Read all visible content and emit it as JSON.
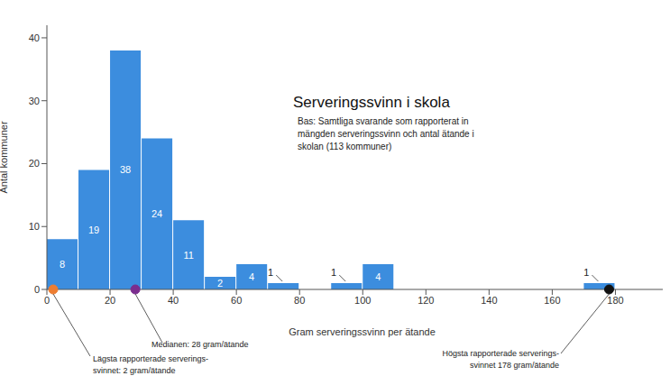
{
  "chart_data": {
    "type": "histogram",
    "title": "Serveringssvinn i skola",
    "subtitle": "Bas: Samtliga svarande som rapporterat in mängden serveringssvinn och antal ätande i skolan (113 kommuner)",
    "x_label": "Gram serveringssvinn per ätande",
    "y_label": "Antal kommuner",
    "bins": [
      0,
      10,
      20,
      30,
      40,
      50,
      60,
      70,
      80,
      90,
      100,
      110,
      120,
      130,
      140,
      150,
      160,
      170,
      180
    ],
    "values": [
      8,
      19,
      38,
      24,
      11,
      2,
      4,
      1,
      0,
      1,
      4,
      0,
      0,
      0,
      0,
      0,
      0,
      1
    ],
    "color": "#3c8dde",
    "xlim": [
      0,
      195
    ],
    "xticks": [
      0,
      20,
      40,
      60,
      80,
      100,
      120,
      140,
      160,
      180
    ],
    "ylim": [
      0,
      42
    ],
    "yticks": [
      0,
      10,
      20,
      30,
      40
    ],
    "grid": false,
    "data_labels": true,
    "annotations": [
      {
        "x": 2,
        "y": 0,
        "text": "Lägsta rapporterade serverings-\nsvinnet: 2 gram/ätande",
        "color": "#ed7d31"
      },
      {
        "x": 28,
        "y": 0,
        "text": "Medianen: 28 gram/ätande",
        "color": "#7b2d8e"
      },
      {
        "x": 178,
        "y": 0,
        "text": "Högsta rapporterade serverings-\nsvinnet 178 gram/ätande",
        "color": "#111111"
      }
    ]
  }
}
